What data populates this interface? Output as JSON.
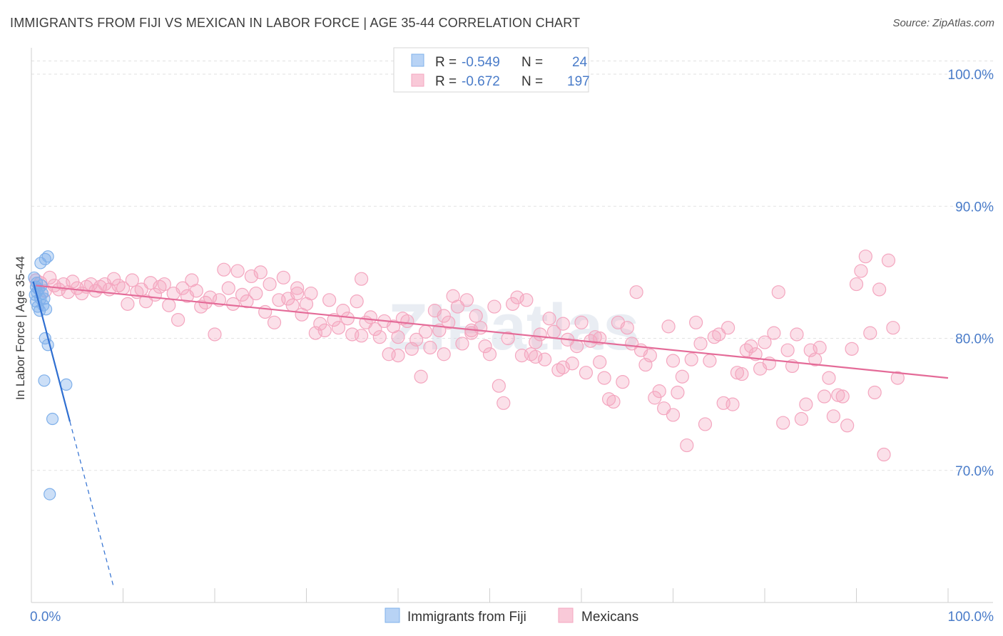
{
  "title": "IMMIGRANTS FROM FIJI VS MEXICAN IN LABOR FORCE | AGE 35-44 CORRELATION CHART",
  "source": "Source: ZipAtlas.com",
  "watermark": "ZIPatlas",
  "colors": {
    "fiji": "#7fb0ea",
    "mexicans": "#f4a6bf",
    "fiji_line": "#2f6fd1",
    "mex_line": "#e46b98",
    "tick": "#4a7cc9"
  },
  "chart_data": {
    "type": "scatter",
    "xlabel": "",
    "ylabel": "In Labor Force | Age 35-44",
    "xlim": [
      0,
      100
    ],
    "ylim": [
      60,
      102
    ],
    "x_tick_labels": [
      "0.0%",
      "100.0%"
    ],
    "y_ticks": [
      70,
      80,
      90,
      100
    ],
    "y_tick_labels": [
      "70.0%",
      "80.0%",
      "90.0%",
      "100.0%"
    ],
    "grid": true,
    "legend": {
      "placement": "top-center",
      "rows": [
        {
          "r_label": "R =",
          "r_value": "-0.549",
          "n_label": "N =",
          "n_value": "24"
        },
        {
          "r_label": "R =",
          "r_value": "-0.672",
          "n_label": "N =",
          "n_value": "197"
        }
      ]
    },
    "bottom_legend": [
      "Immigrants from Fiji",
      "Mexicans"
    ],
    "series": [
      {
        "name": "Immigrants from Fiji",
        "trend": {
          "x0": 0.2,
          "y0": 84.3,
          "x1": 4.2,
          "y1": 73.7,
          "dash_to_x": 9.0,
          "dash_to_y": 61.1
        },
        "points": [
          [
            0.3,
            84.6
          ],
          [
            0.5,
            83.9
          ],
          [
            0.6,
            84.2
          ],
          [
            0.8,
            83.7
          ],
          [
            0.5,
            82.8
          ],
          [
            1.0,
            83.0
          ],
          [
            0.7,
            82.4
          ],
          [
            1.2,
            83.4
          ],
          [
            1.4,
            83.0
          ],
          [
            1.6,
            82.2
          ],
          [
            1.0,
            85.7
          ],
          [
            1.5,
            86.0
          ],
          [
            1.8,
            86.2
          ],
          [
            0.9,
            82.1
          ],
          [
            1.5,
            80.0
          ],
          [
            1.8,
            79.5
          ],
          [
            1.4,
            76.8
          ],
          [
            3.8,
            76.5
          ],
          [
            2.3,
            73.9
          ],
          [
            2.0,
            68.2
          ],
          [
            0.4,
            83.3
          ],
          [
            1.1,
            84.0
          ],
          [
            0.6,
            83.5
          ],
          [
            1.3,
            82.5
          ]
        ]
      },
      {
        "name": "Mexicans",
        "trend": {
          "x0": 0.5,
          "y0": 84.0,
          "x1": 100,
          "y1": 77.0
        },
        "points": [
          [
            0.5,
            84.4
          ],
          [
            1.0,
            84.2
          ],
          [
            1.5,
            83.6
          ],
          [
            2.0,
            84.6
          ],
          [
            2.5,
            84.0
          ],
          [
            3.0,
            83.7
          ],
          [
            3.5,
            84.1
          ],
          [
            4.0,
            83.5
          ],
          [
            4.5,
            84.3
          ],
          [
            5.0,
            83.8
          ],
          [
            5.5,
            83.4
          ],
          [
            6.0,
            83.9
          ],
          [
            6.5,
            84.1
          ],
          [
            7.0,
            83.6
          ],
          [
            7.5,
            83.9
          ],
          [
            8.0,
            84.1
          ],
          [
            8.5,
            83.7
          ],
          [
            9.0,
            84.5
          ],
          [
            9.5,
            84.0
          ],
          [
            10.0,
            83.8
          ],
          [
            10.5,
            82.6
          ],
          [
            11.0,
            84.4
          ],
          [
            11.5,
            83.5
          ],
          [
            12.0,
            83.7
          ],
          [
            12.5,
            82.8
          ],
          [
            13.0,
            84.2
          ],
          [
            13.5,
            83.3
          ],
          [
            14.0,
            83.9
          ],
          [
            14.5,
            84.1
          ],
          [
            15.0,
            82.5
          ],
          [
            15.5,
            83.4
          ],
          [
            16.0,
            81.4
          ],
          [
            16.5,
            83.8
          ],
          [
            17.0,
            83.2
          ],
          [
            17.5,
            84.4
          ],
          [
            18.0,
            83.6
          ],
          [
            18.5,
            82.4
          ],
          [
            19.0,
            82.7
          ],
          [
            19.5,
            83.1
          ],
          [
            20.0,
            80.3
          ],
          [
            20.5,
            82.9
          ],
          [
            21.0,
            85.2
          ],
          [
            21.5,
            83.8
          ],
          [
            22.0,
            82.6
          ],
          [
            22.5,
            85.1
          ],
          [
            23.0,
            83.3
          ],
          [
            23.5,
            82.8
          ],
          [
            24.0,
            84.7
          ],
          [
            24.5,
            83.4
          ],
          [
            25.0,
            85.0
          ],
          [
            25.5,
            82.0
          ],
          [
            26.0,
            84.1
          ],
          [
            26.5,
            81.2
          ],
          [
            27.0,
            82.9
          ],
          [
            27.5,
            84.6
          ],
          [
            28.0,
            83.0
          ],
          [
            28.5,
            82.5
          ],
          [
            29.0,
            83.8
          ],
          [
            29.5,
            81.8
          ],
          [
            30.0,
            82.6
          ],
          [
            30.5,
            83.4
          ],
          [
            31.0,
            80.4
          ],
          [
            31.5,
            81.1
          ],
          [
            32.0,
            80.6
          ],
          [
            32.5,
            82.9
          ],
          [
            33.0,
            81.4
          ],
          [
            33.5,
            80.8
          ],
          [
            34.0,
            82.1
          ],
          [
            34.5,
            81.5
          ],
          [
            35.0,
            80.3
          ],
          [
            35.5,
            82.8
          ],
          [
            36.0,
            84.5
          ],
          [
            36.5,
            81.2
          ],
          [
            37.0,
            81.6
          ],
          [
            37.5,
            80.7
          ],
          [
            38.0,
            80.1
          ],
          [
            38.5,
            81.3
          ],
          [
            39.0,
            78.8
          ],
          [
            39.5,
            80.9
          ],
          [
            40.0,
            78.7
          ],
          [
            40.5,
            81.5
          ],
          [
            41.0,
            81.3
          ],
          [
            41.5,
            79.2
          ],
          [
            42.0,
            79.9
          ],
          [
            42.5,
            77.1
          ],
          [
            43.0,
            80.5
          ],
          [
            43.5,
            79.3
          ],
          [
            44.0,
            82.1
          ],
          [
            44.5,
            80.6
          ],
          [
            45.0,
            81.7
          ],
          [
            45.5,
            81.2
          ],
          [
            46.0,
            83.2
          ],
          [
            46.5,
            82.4
          ],
          [
            47.0,
            79.6
          ],
          [
            47.5,
            82.9
          ],
          [
            48.0,
            80.6
          ],
          [
            48.5,
            81.7
          ],
          [
            49.0,
            80.8
          ],
          [
            49.5,
            79.4
          ],
          [
            50.0,
            78.8
          ],
          [
            50.5,
            82.4
          ],
          [
            51.0,
            76.4
          ],
          [
            51.5,
            75.1
          ],
          [
            52.0,
            80.0
          ],
          [
            52.5,
            82.6
          ],
          [
            53.0,
            83.1
          ],
          [
            53.5,
            78.7
          ],
          [
            54.0,
            82.9
          ],
          [
            54.5,
            78.8
          ],
          [
            55.0,
            79.7
          ],
          [
            55.5,
            80.3
          ],
          [
            56.0,
            78.4
          ],
          [
            56.5,
            81.5
          ],
          [
            57.0,
            80.5
          ],
          [
            57.5,
            77.6
          ],
          [
            58.0,
            81.1
          ],
          [
            58.5,
            79.9
          ],
          [
            59.0,
            78.1
          ],
          [
            59.5,
            79.4
          ],
          [
            60.0,
            81.2
          ],
          [
            60.5,
            77.4
          ],
          [
            61.0,
            79.8
          ],
          [
            61.5,
            80.1
          ],
          [
            62.0,
            78.2
          ],
          [
            62.5,
            77.0
          ],
          [
            63.0,
            75.4
          ],
          [
            63.5,
            75.2
          ],
          [
            64.0,
            81.2
          ],
          [
            64.5,
            76.7
          ],
          [
            65.0,
            80.8
          ],
          [
            65.5,
            79.6
          ],
          [
            66.0,
            83.5
          ],
          [
            66.5,
            79.1
          ],
          [
            67.0,
            78.0
          ],
          [
            67.5,
            78.7
          ],
          [
            68.0,
            75.5
          ],
          [
            68.5,
            76.0
          ],
          [
            69.0,
            74.7
          ],
          [
            69.5,
            80.9
          ],
          [
            70.0,
            74.2
          ],
          [
            70.5,
            75.9
          ],
          [
            71.0,
            77.1
          ],
          [
            71.5,
            71.9
          ],
          [
            72.0,
            78.4
          ],
          [
            72.5,
            81.2
          ],
          [
            73.0,
            79.6
          ],
          [
            73.5,
            73.5
          ],
          [
            74.0,
            78.3
          ],
          [
            74.5,
            80.1
          ],
          [
            75.0,
            80.3
          ],
          [
            75.5,
            75.1
          ],
          [
            76.0,
            80.8
          ],
          [
            76.5,
            75.0
          ],
          [
            77.0,
            77.4
          ],
          [
            77.5,
            77.3
          ],
          [
            78.0,
            79.1
          ],
          [
            78.5,
            79.4
          ],
          [
            79.0,
            78.8
          ],
          [
            79.5,
            77.7
          ],
          [
            80.0,
            79.7
          ],
          [
            80.5,
            78.1
          ],
          [
            81.0,
            80.4
          ],
          [
            81.5,
            83.5
          ],
          [
            82.0,
            73.6
          ],
          [
            82.5,
            79.1
          ],
          [
            83.0,
            77.9
          ],
          [
            83.5,
            80.3
          ],
          [
            84.0,
            73.9
          ],
          [
            84.5,
            75.0
          ],
          [
            85.0,
            79.1
          ],
          [
            85.5,
            78.4
          ],
          [
            86.0,
            79.3
          ],
          [
            86.5,
            75.6
          ],
          [
            87.0,
            77.0
          ],
          [
            87.5,
            74.1
          ],
          [
            88.0,
            75.7
          ],
          [
            88.5,
            75.6
          ],
          [
            89.0,
            73.4
          ],
          [
            89.5,
            79.2
          ],
          [
            90.0,
            84.1
          ],
          [
            90.5,
            85.1
          ],
          [
            91.0,
            86.2
          ],
          [
            91.5,
            80.4
          ],
          [
            92.0,
            75.9
          ],
          [
            92.5,
            83.7
          ],
          [
            93.0,
            71.2
          ],
          [
            93.5,
            85.9
          ],
          [
            94.0,
            80.8
          ],
          [
            94.5,
            77.0
          ],
          [
            55.0,
            78.6
          ],
          [
            36.0,
            80.2
          ],
          [
            48.0,
            80.4
          ],
          [
            45.0,
            78.8
          ],
          [
            62.0,
            80.0
          ],
          [
            70.0,
            78.3
          ],
          [
            58.0,
            77.8
          ],
          [
            40.0,
            80.1
          ],
          [
            29.0,
            83.4
          ]
        ]
      }
    ]
  }
}
